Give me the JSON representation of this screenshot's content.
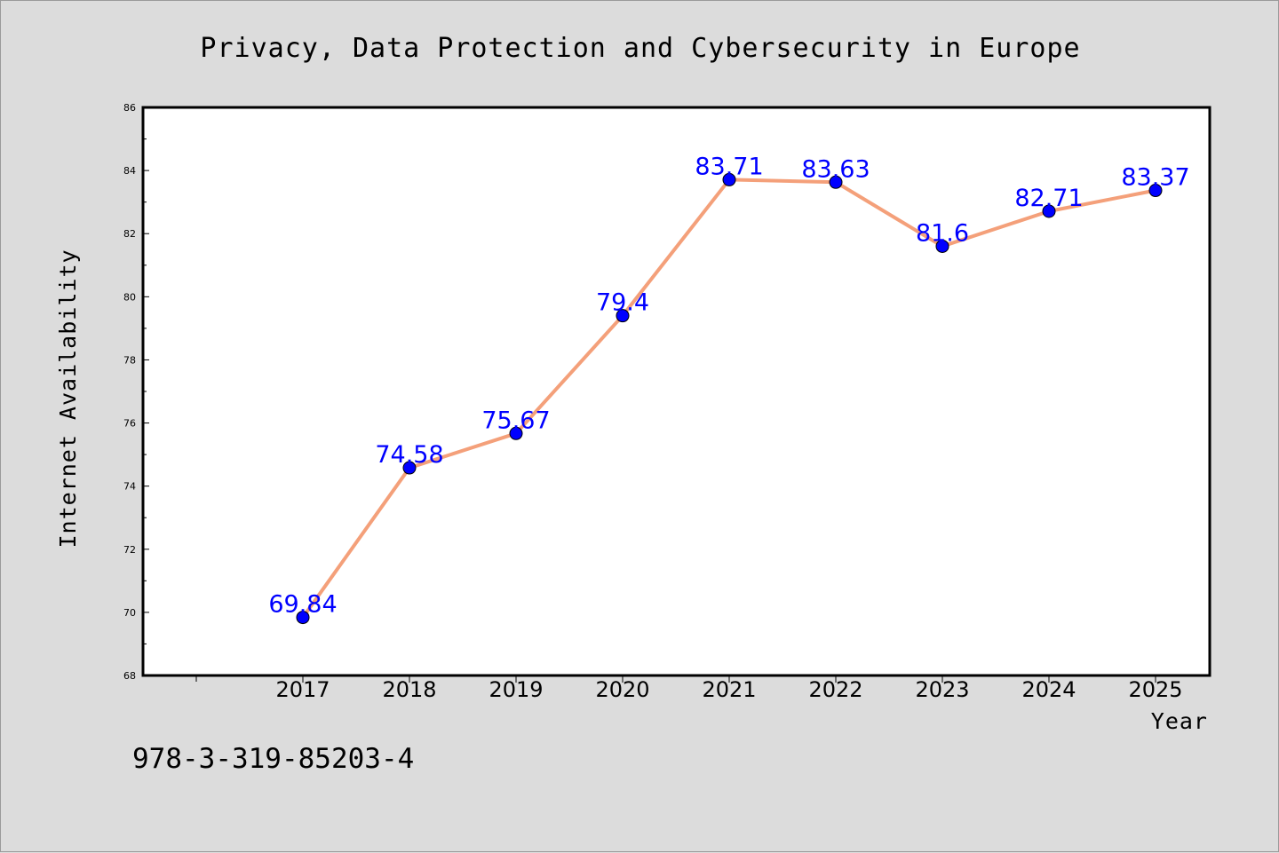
{
  "chart_data": {
    "type": "line",
    "title": "Privacy, Data Protection and Cybersecurity in Europe",
    "xlabel": "Year",
    "ylabel": "Internet Availability",
    "x": [
      "2017",
      "2018",
      "2019",
      "2020",
      "2021",
      "2022",
      "2023",
      "2024",
      "2025"
    ],
    "series": [
      {
        "values": [
          69.84,
          74.58,
          75.67,
          79.4,
          83.71,
          83.63,
          81.6,
          82.71,
          83.37
        ],
        "labels": [
          "69.84",
          "74.58",
          "75.67",
          "79.4",
          "83.71",
          "83.63",
          "81.6",
          "82.71",
          "83.37"
        ],
        "line_color": "#f4a07a",
        "marker_color": "#0000ff"
      }
    ],
    "ylim": [
      68,
      86
    ],
    "yticks": [
      68,
      70,
      72,
      74,
      76,
      78,
      80,
      82,
      84,
      86
    ],
    "grid": false,
    "legend": "none"
  },
  "footer": {
    "isbn": "978-3-319-85203-4"
  }
}
